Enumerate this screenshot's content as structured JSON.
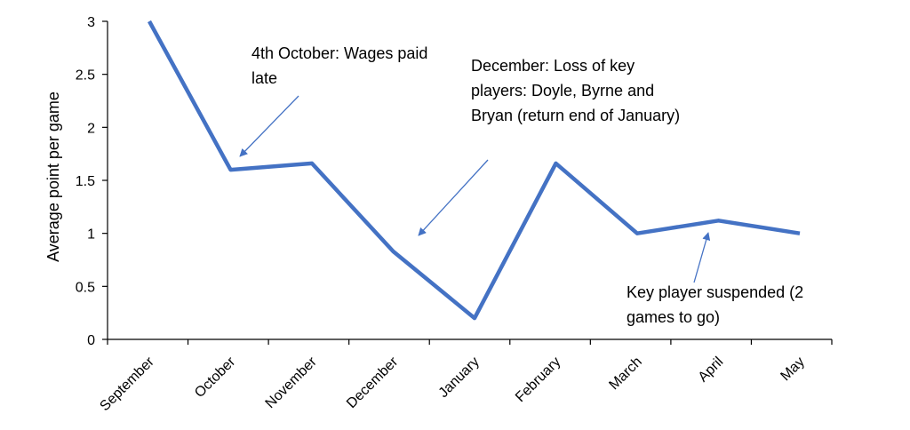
{
  "chart_data": {
    "type": "line",
    "title": "",
    "xlabel": "",
    "ylabel": "Average point per game",
    "categories": [
      "September",
      "October",
      "November",
      "December",
      "January",
      "February",
      "March",
      "April",
      "May"
    ],
    "series": [
      {
        "values": [
          3.0,
          1.6,
          1.66,
          0.83,
          0.2,
          1.66,
          1.0,
          1.12,
          1.0
        ]
      }
    ],
    "ylim": [
      0,
      3
    ],
    "yticks": [
      "0",
      "0.5",
      "1",
      "1.5",
      "2",
      "2.5",
      "3"
    ],
    "grid": false,
    "legend": "none",
    "line_color": "#4472C4",
    "annotations": [
      {
        "id": "wages",
        "lines": [
          "4th October: Wages paid",
          "late"
        ],
        "points_to_category": "October"
      },
      {
        "id": "key-players",
        "lines": [
          "December: Loss of key",
          "players: Doyle, Byrne and",
          "Bryan (return end of January)"
        ],
        "points_to_category": "December"
      },
      {
        "id": "suspended",
        "lines": [
          "Key player suspended (2",
          "games to go)"
        ],
        "points_to_category": "April"
      }
    ]
  }
}
